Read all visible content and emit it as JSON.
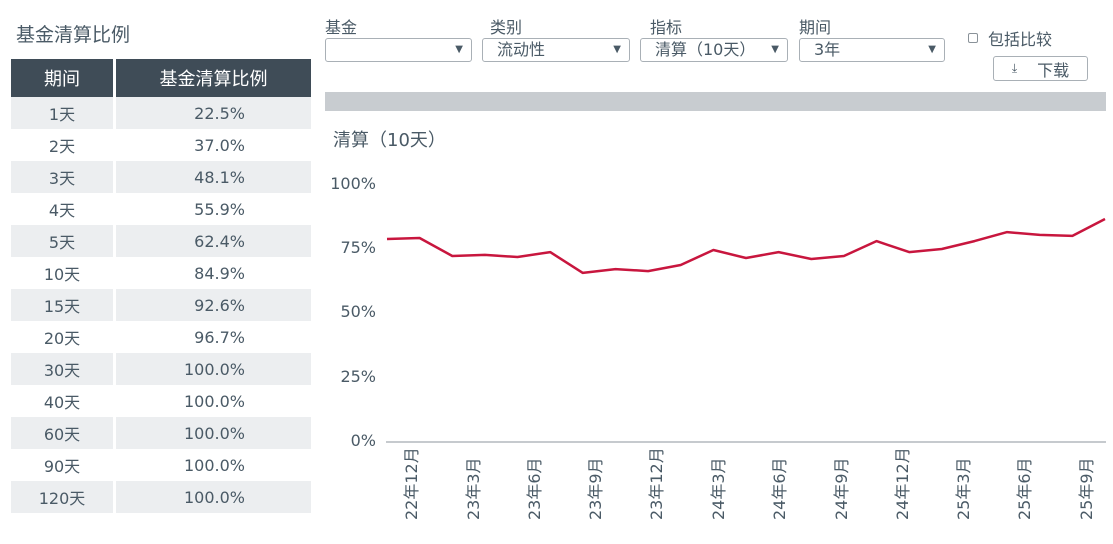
{
  "left_panel": {
    "title": "基金清算比例",
    "table": {
      "headers": [
        "期间",
        "基金清算比例"
      ],
      "rows": [
        {
          "period": "1天",
          "ratio": "22.5%"
        },
        {
          "period": "2天",
          "ratio": "37.0%"
        },
        {
          "period": "3天",
          "ratio": "48.1%"
        },
        {
          "period": "4天",
          "ratio": "55.9%"
        },
        {
          "period": "5天",
          "ratio": "62.4%"
        },
        {
          "period": "10天",
          "ratio": "84.9%"
        },
        {
          "period": "15天",
          "ratio": "92.6%"
        },
        {
          "period": "20天",
          "ratio": "96.7%"
        },
        {
          "period": "30天",
          "ratio": "100.0%"
        },
        {
          "period": "40天",
          "ratio": "100.0%"
        },
        {
          "period": "60天",
          "ratio": "100.0%"
        },
        {
          "period": "90天",
          "ratio": "100.0%"
        },
        {
          "period": "120天",
          "ratio": "100.0%"
        }
      ]
    }
  },
  "filters": {
    "fund": {
      "label": "基金",
      "value": ""
    },
    "category": {
      "label": "类别",
      "value": "流动性"
    },
    "metric": {
      "label": "指标",
      "value": "清算（10天）"
    },
    "period": {
      "label": "期间",
      "value": "3年"
    },
    "dropdown_icon": "caret-down-icon"
  },
  "compare_checkbox": {
    "label": "包括比较",
    "checked": false
  },
  "download_button": {
    "label": "下载",
    "icon": "download-icon"
  },
  "chart_data": {
    "type": "line",
    "title": "清算（10天）",
    "xlabel": "",
    "ylabel": "",
    "ylim": [
      0,
      100
    ],
    "yticks": [
      "100%",
      "75%",
      "50%",
      "25%",
      "0%"
    ],
    "xticks": [
      "22年12月",
      "23年3月",
      "23年6月",
      "23年9月",
      "23年12月",
      "24年3月",
      "24年6月",
      "24年9月",
      "24年12月",
      "25年3月",
      "25年6月",
      "25年9月"
    ],
    "grid": false,
    "line_color": "#c8163e",
    "series": [
      {
        "name": "清算（10天）",
        "values": [
          78.6,
          79.0,
          72.0,
          72.4,
          71.6,
          73.5,
          65.4,
          66.9,
          66.1,
          68.5,
          74.3,
          71.2,
          73.5,
          70.8,
          72.0,
          77.8,
          73.5,
          74.7,
          77.8,
          81.3,
          80.2,
          79.8,
          86.4
        ]
      }
    ]
  }
}
